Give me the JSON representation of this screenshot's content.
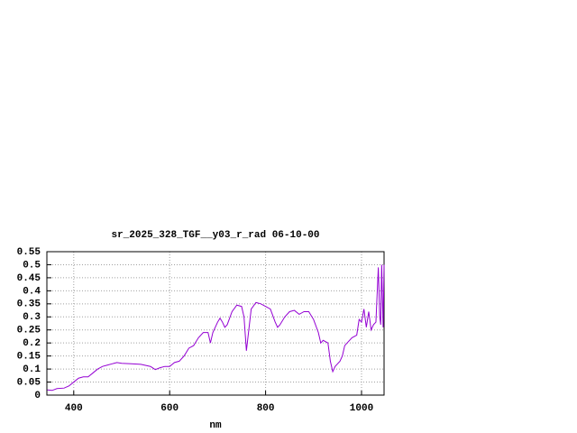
{
  "chart_data": {
    "type": "line",
    "title": "sr_2025_328_TGF__y03_r_rad 06-10-00",
    "x_label": "nm",
    "xlim": [
      344,
      1047
    ],
    "xticks": [
      400,
      600,
      800,
      1000
    ],
    "ylim": [
      0,
      0.55
    ],
    "yticks": [
      0,
      0.05,
      0.1,
      0.15,
      0.2,
      0.25,
      0.3,
      0.35,
      0.4,
      0.45,
      0.5,
      0.55
    ],
    "grid": true,
    "series": [
      {
        "color": "#9400d3",
        "x": [
          345,
          355,
          365,
          380,
          390,
          400,
          410,
          420,
          430,
          440,
          450,
          460,
          470,
          480,
          490,
          500,
          520,
          540,
          560,
          570,
          580,
          590,
          600,
          610,
          620,
          630,
          640,
          650,
          660,
          670,
          680,
          685,
          690,
          700,
          705,
          710,
          715,
          720,
          730,
          740,
          750,
          755,
          760,
          765,
          770,
          780,
          790,
          800,
          810,
          820,
          825,
          830,
          840,
          850,
          860,
          870,
          880,
          890,
          900,
          910,
          915,
          920,
          930,
          935,
          940,
          945,
          950,
          955,
          960,
          965,
          970,
          980,
          990,
          995,
          1000,
          1005,
          1010,
          1015,
          1020,
          1025,
          1030,
          1035,
          1038,
          1040,
          1042,
          1045,
          1047
        ],
        "values": [
          0.02,
          0.018,
          0.025,
          0.027,
          0.035,
          0.05,
          0.065,
          0.07,
          0.07,
          0.085,
          0.1,
          0.11,
          0.115,
          0.12,
          0.125,
          0.122,
          0.12,
          0.118,
          0.11,
          0.098,
          0.105,
          0.11,
          0.11,
          0.125,
          0.13,
          0.15,
          0.18,
          0.19,
          0.22,
          0.24,
          0.24,
          0.2,
          0.24,
          0.28,
          0.295,
          0.28,
          0.26,
          0.27,
          0.32,
          0.345,
          0.34,
          0.3,
          0.17,
          0.25,
          0.33,
          0.355,
          0.35,
          0.34,
          0.33,
          0.28,
          0.26,
          0.27,
          0.3,
          0.32,
          0.325,
          0.31,
          0.32,
          0.32,
          0.29,
          0.24,
          0.2,
          0.21,
          0.2,
          0.13,
          0.09,
          0.11,
          0.12,
          0.13,
          0.15,
          0.19,
          0.2,
          0.22,
          0.23,
          0.29,
          0.28,
          0.33,
          0.26,
          0.32,
          0.25,
          0.27,
          0.28,
          0.49,
          0.3,
          0.27,
          0.5,
          0.26,
          0.5
        ]
      }
    ]
  }
}
